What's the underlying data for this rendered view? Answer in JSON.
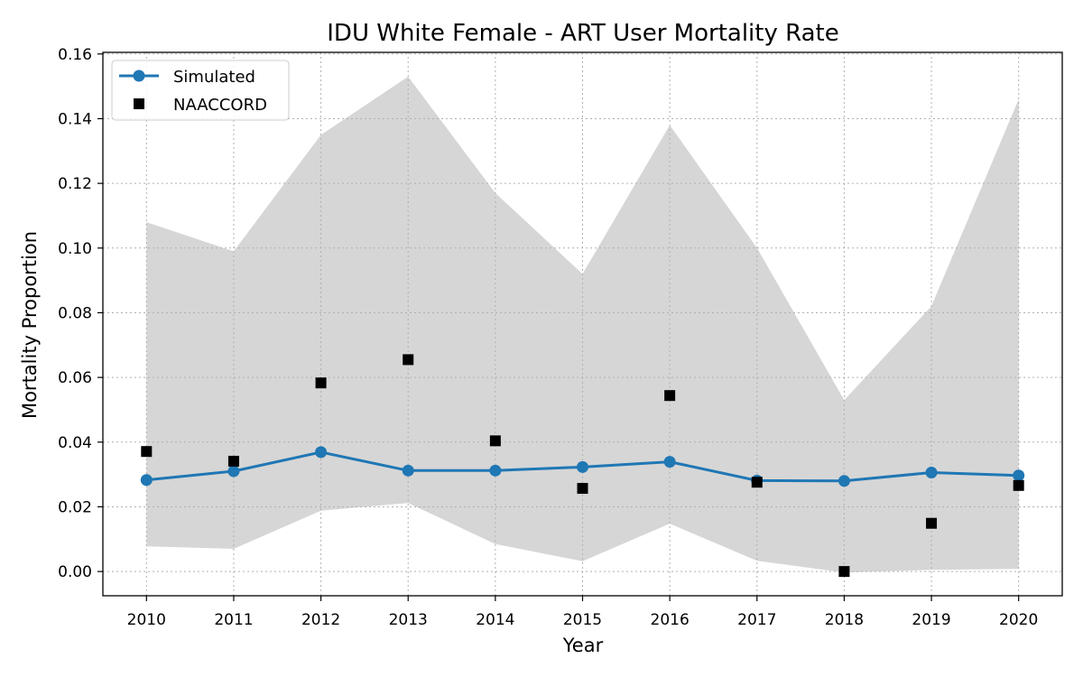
{
  "chart_data": {
    "type": "line",
    "title": "IDU White Female - ART User Mortality Rate",
    "xlabel": "Year",
    "ylabel": "Mortality Proportion",
    "x": [
      2010,
      2011,
      2012,
      2013,
      2014,
      2015,
      2016,
      2017,
      2018,
      2019,
      2020
    ],
    "xlim": [
      2009.5,
      2020.5
    ],
    "ylim": [
      -0.0075,
      0.1605
    ],
    "yticks": [
      "0.00",
      "0.02",
      "0.04",
      "0.06",
      "0.08",
      "0.10",
      "0.12",
      "0.14",
      "0.16"
    ],
    "ytick_values": [
      0.0,
      0.02,
      0.04,
      0.06,
      0.08,
      0.1,
      0.12,
      0.14,
      0.16
    ],
    "grid": true,
    "legend_position": "top-left",
    "colors": {
      "simulated": "#1f77b4",
      "naaccord": "#000000",
      "band": "#d6d6d6"
    },
    "band": {
      "lower": [
        0.0078,
        0.007,
        0.0188,
        0.0212,
        0.0085,
        0.0032,
        0.0148,
        0.0033,
        -0.0003,
        0.0005,
        0.0008
      ],
      "upper": [
        0.108,
        0.099,
        0.135,
        0.153,
        0.117,
        0.092,
        0.138,
        0.1,
        0.053,
        0.082,
        0.146
      ]
    },
    "series": [
      {
        "name": "Simulated",
        "style": "line-marker",
        "values": [
          0.0283,
          0.031,
          0.0369,
          0.0312,
          0.0312,
          0.0323,
          0.0339,
          0.0281,
          0.028,
          0.0306,
          0.0297
        ]
      },
      {
        "name": "NAACCORD",
        "style": "square-marker",
        "values": [
          0.0371,
          0.0341,
          0.0583,
          0.0655,
          0.0404,
          0.0257,
          0.0544,
          0.0276,
          0.0,
          0.0149,
          0.0266
        ]
      }
    ]
  }
}
